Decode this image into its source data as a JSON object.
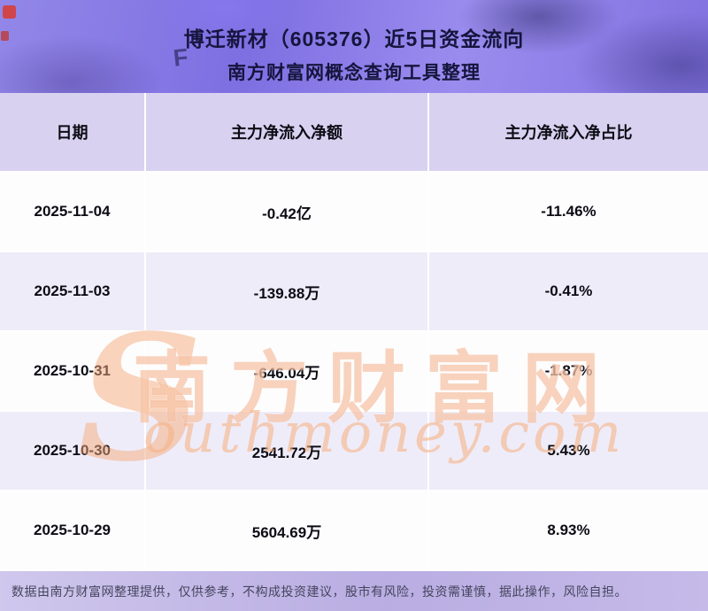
{
  "header": {
    "title_line1": "博迁新材（605376）近5日资金流向",
    "title_line2": "南方财富网概念查询工具整理"
  },
  "chart_data": {
    "type": "table",
    "title": "博迁新材（605376）近5日资金流向",
    "subtitle": "南方财富网概念查询工具整理",
    "columns": [
      "日期",
      "主力净流入净额",
      "主力净流入净占比"
    ],
    "rows": [
      [
        "2025-11-04",
        "-0.42亿",
        "-11.46%"
      ],
      [
        "2025-11-03",
        "-139.88万",
        "-0.41%"
      ],
      [
        "2025-10-31",
        "-646.04万",
        "-1.87%"
      ],
      [
        "2025-10-30",
        "2541.72万",
        "5.43%"
      ],
      [
        "2025-10-29",
        "5604.69万",
        "8.93%"
      ]
    ]
  },
  "watermark": {
    "cn": "南方财富网",
    "en_initial": "S",
    "en_rest": "outhmoney.com"
  },
  "footer": {
    "disclaimer": "数据由南方财富网整理提供，仅供参考，不构成投资建议，股市有风险，投资需谨慎，据此操作，风险自担。"
  },
  "colors": {
    "banner_purple": "#8172e0",
    "table_header_bg": "#d8d1f0",
    "row_alt_bg": "#efecf9",
    "watermark_orange": "#f3a375",
    "footer_bg": "#c5bae8"
  }
}
